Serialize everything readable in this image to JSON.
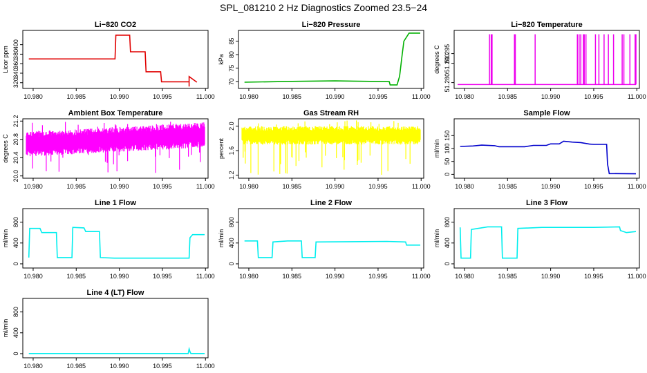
{
  "figure": {
    "title": "SPL_081210  2 Hz Diagnostics Zoomed 23.5−24"
  },
  "chart_data": [
    {
      "id": "co2",
      "type": "line",
      "title": "Li−820 CO2",
      "ylabel": "Licor ppm",
      "color": "#e00000",
      "xlim": [
        10.9788,
        11.0003
      ],
      "ylim": [
        308,
        430
      ],
      "xticks": [
        "10.980",
        "10.985",
        "10.990",
        "10.995",
        "11.000"
      ],
      "yticks": [
        "320",
        "340",
        "360",
        "380",
        "400"
      ],
      "series": [
        {
          "x": [
            10.9795,
            10.9895,
            10.9896,
            10.9912,
            10.9913,
            10.993,
            10.9931,
            10.9948,
            10.9949,
            10.9981,
            10.9981,
            10.9981,
            10.999
          ],
          "y": [
            370,
            370,
            420,
            420,
            385,
            385,
            343,
            343,
            322,
            322,
            312,
            333,
            321
          ]
        }
      ]
    },
    {
      "id": "pressure",
      "type": "line",
      "title": "Li−820 Pressure",
      "ylabel": "kPa",
      "color": "#00b000",
      "xlim": [
        10.9788,
        11.0003
      ],
      "ylim": [
        67.5,
        89
      ],
      "xticks": [
        "10.980",
        "10.985",
        "10.990",
        "10.995",
        "11.000"
      ],
      "yticks": [
        "70",
        "75",
        "80",
        "85"
      ],
      "series": [
        {
          "x": [
            10.9795,
            10.985,
            10.99,
            10.9963,
            10.9964,
            10.9972,
            10.9975,
            10.9978,
            10.998,
            10.9986,
            10.9999
          ],
          "y": [
            69.8,
            70.1,
            70.3,
            70.0,
            68.8,
            68.8,
            72.0,
            80.0,
            85.0,
            88.0,
            88.0
          ]
        }
      ]
    },
    {
      "id": "licor_temp",
      "type": "line",
      "title": "Li−820 Temperature",
      "ylabel": "degrees C",
      "color": "#ee00ee",
      "xlim": [
        10.9788,
        11.0003
      ],
      "ylim": [
        51.277,
        51.307
      ],
      "xticks": [
        "10.980",
        "10.985",
        "10.990",
        "10.995",
        "11.000"
      ],
      "yticks": [
        "51.280",
        "51.290",
        "51.295"
      ],
      "baseline": 51.279,
      "spikes_x": [
        10.9829,
        10.9831,
        10.9832,
        10.9858,
        10.9859,
        10.9882,
        10.9931,
        10.9933,
        10.9935,
        10.9938,
        10.9939,
        10.9941,
        10.9952,
        10.9956,
        10.9962,
        10.9967,
        10.9973,
        10.9983,
        10.9985,
        10.9992,
        10.9998,
        10.9999
      ],
      "spike_top": 51.305
    },
    {
      "id": "ambient_temp",
      "type": "line",
      "title": "Ambient Box Temperature",
      "ylabel": "degrees C",
      "color": "#ff00ff",
      "xlim": [
        10.9788,
        11.0003
      ],
      "ylim": [
        19.95,
        21.25
      ],
      "xticks": [
        "10.980",
        "10.985",
        "10.990",
        "10.995",
        "11.000"
      ],
      "yticks": [
        "20.0",
        "20.4",
        "20.8",
        "21.2"
      ],
      "series": [
        {
          "x": [
            10.9792,
            10.985,
            10.99,
            10.995,
            10.9999
          ],
          "y": [
            20.7,
            20.75,
            20.8,
            20.85,
            20.9
          ]
        }
      ],
      "noise_band": [
        20.5,
        21.05
      ],
      "noise_extreme": [
        20.05,
        21.2
      ]
    },
    {
      "id": "rh",
      "type": "line",
      "title": "Gas Stream RH",
      "ylabel": "percent",
      "color": "#ffff00",
      "xlim": [
        10.9788,
        11.0003
      ],
      "ylim": [
        1.15,
        2.12
      ],
      "xticks": [
        "10.980",
        "10.985",
        "10.990",
        "10.995",
        "11.000"
      ],
      "yticks": [
        "1.2",
        "1.6",
        "2.0"
      ],
      "series": [
        {
          "x": [
            10.9792,
            10.9999
          ],
          "y": [
            1.85,
            1.85
          ]
        }
      ],
      "noise_band": [
        1.7,
        2.0
      ],
      "noise_extreme": [
        1.2,
        2.1
      ]
    },
    {
      "id": "sample_flow",
      "type": "line",
      "title": "Sample Flow",
      "ylabel": "ml/min",
      "color": "#0000cc",
      "xlim": [
        10.9788,
        11.0003
      ],
      "ylim": [
        -15,
        215
      ],
      "xticks": [
        "10.980",
        "10.985",
        "10.990",
        "10.995",
        "11.000"
      ],
      "yticks": [
        "0",
        "50",
        "100",
        "150"
      ],
      "series": [
        {
          "x": [
            10.9795,
            10.981,
            10.982,
            10.9835,
            10.984,
            10.987,
            10.988,
            10.9895,
            10.99,
            10.991,
            10.9915,
            10.9925,
            10.9935,
            10.9945,
            10.995,
            10.9965,
            10.9966,
            10.9968,
            10.9999
          ],
          "y": [
            108,
            110,
            113,
            111,
            107,
            107,
            112,
            112,
            118,
            118,
            128,
            125,
            123,
            117,
            116,
            116,
            40,
            3,
            2
          ]
        }
      ]
    },
    {
      "id": "line1",
      "type": "line",
      "title": "Line 1 Flow",
      "ylabel": "ml/min",
      "color": "#00eeee",
      "xlim": [
        10.9788,
        11.0003
      ],
      "ylim": [
        -80,
        1060
      ],
      "xticks": [
        "10.980",
        "10.985",
        "10.990",
        "10.995",
        "11.000"
      ],
      "yticks": [
        "0",
        "400",
        "800"
      ],
      "series": [
        {
          "x": [
            10.9795,
            10.9796,
            10.9808,
            10.981,
            10.9827,
            10.9828,
            10.9845,
            10.9846,
            10.9859,
            10.9861,
            10.9877,
            10.9878,
            10.9894,
            10.9981,
            10.9982,
            10.9985,
            10.9999
          ],
          "y": [
            120,
            680,
            680,
            600,
            600,
            120,
            120,
            700,
            690,
            620,
            620,
            120,
            110,
            110,
            500,
            560,
            560
          ]
        }
      ]
    },
    {
      "id": "line2",
      "type": "line",
      "title": "Line 2 Flow",
      "ylabel": "ml/min",
      "color": "#00eeee",
      "xlim": [
        10.9788,
        11.0003
      ],
      "ylim": [
        -80,
        1060
      ],
      "xticks": [
        "10.980",
        "10.985",
        "10.990",
        "10.995",
        "11.000"
      ],
      "yticks": [
        "0",
        "400",
        "800"
      ],
      "series": [
        {
          "x": [
            10.9795,
            10.981,
            10.9811,
            10.9827,
            10.9828,
            10.9845,
            10.9861,
            10.9862,
            10.9877,
            10.9878,
            10.996,
            10.9982,
            10.9983,
            10.9999
          ],
          "y": [
            440,
            440,
            120,
            120,
            420,
            440,
            440,
            120,
            120,
            420,
            430,
            420,
            360,
            360
          ]
        }
      ]
    },
    {
      "id": "line3",
      "type": "line",
      "title": "Line 3 Flow",
      "ylabel": "ml/min",
      "color": "#00eeee",
      "xlim": [
        10.9788,
        11.0003
      ],
      "ylim": [
        -80,
        1060
      ],
      "xticks": [
        "10.980",
        "10.985",
        "10.990",
        "10.995",
        "11.000"
      ],
      "yticks": [
        "0",
        "400",
        "800"
      ],
      "series": [
        {
          "x": [
            10.9795,
            10.9796,
            10.9807,
            10.9808,
            10.9827,
            10.9843,
            10.9844,
            10.9861,
            10.9862,
            10.989,
            10.995,
            10.998,
            10.9981,
            10.9988,
            10.9999
          ],
          "y": [
            700,
            110,
            110,
            660,
            710,
            710,
            110,
            110,
            680,
            700,
            700,
            710,
            640,
            600,
            620
          ]
        }
      ]
    },
    {
      "id": "line4",
      "type": "line",
      "title": "Line 4 (LT) Flow",
      "ylabel": "ml/min",
      "color": "#00eeee",
      "xlim": [
        10.9788,
        11.0003
      ],
      "ylim": [
        -80,
        1060
      ],
      "xticks": [
        "10.980",
        "10.985",
        "10.990",
        "10.995",
        "11.000"
      ],
      "yticks": [
        "0",
        "400",
        "800"
      ],
      "series": [
        {
          "x": [
            10.9795,
            10.998,
            10.9981,
            10.9982,
            10.9983,
            10.9999
          ],
          "y": [
            2,
            2,
            90,
            40,
            2,
            2
          ]
        }
      ]
    }
  ]
}
